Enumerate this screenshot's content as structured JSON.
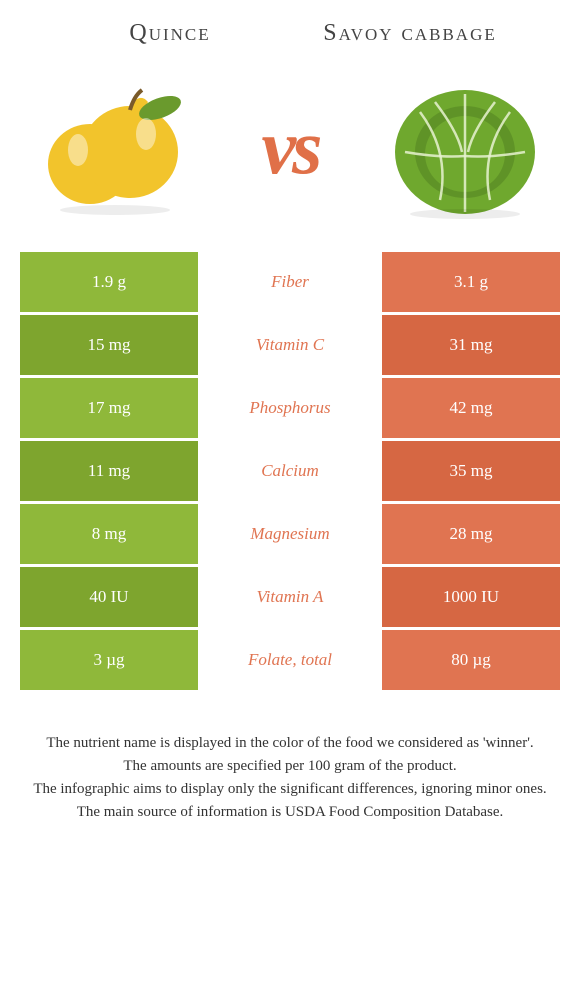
{
  "left": {
    "title": "Quince",
    "color": "#8fb83a",
    "colorDark": "#7ea52e"
  },
  "right": {
    "title": "Savoy cabbage",
    "color": "#e07451",
    "colorDark": "#d66743"
  },
  "vs": "vs",
  "rows": [
    {
      "label": "Fiber",
      "left": "1.9 g",
      "right": "3.1 g",
      "winner": "right"
    },
    {
      "label": "Vitamin C",
      "left": "15 mg",
      "right": "31 mg",
      "winner": "right"
    },
    {
      "label": "Phosphorus",
      "left": "17 mg",
      "right": "42 mg",
      "winner": "right"
    },
    {
      "label": "Calcium",
      "left": "11 mg",
      "right": "35 mg",
      "winner": "right"
    },
    {
      "label": "Magnesium",
      "left": "8 mg",
      "right": "28 mg",
      "winner": "right"
    },
    {
      "label": "Vitamin A",
      "left": "40 IU",
      "right": "1000 IU",
      "winner": "right"
    },
    {
      "label": "Folate, total",
      "left": "3 µg",
      "right": "80 µg",
      "winner": "right"
    }
  ],
  "footer": [
    "The nutrient name is displayed in the color of the food we considered as 'winner'.",
    "The amounts are specified per 100 gram of the product.",
    "The infographic aims to display only the significant differences, ignoring minor ones.",
    "The main source of information is USDA Food Composition Database."
  ]
}
